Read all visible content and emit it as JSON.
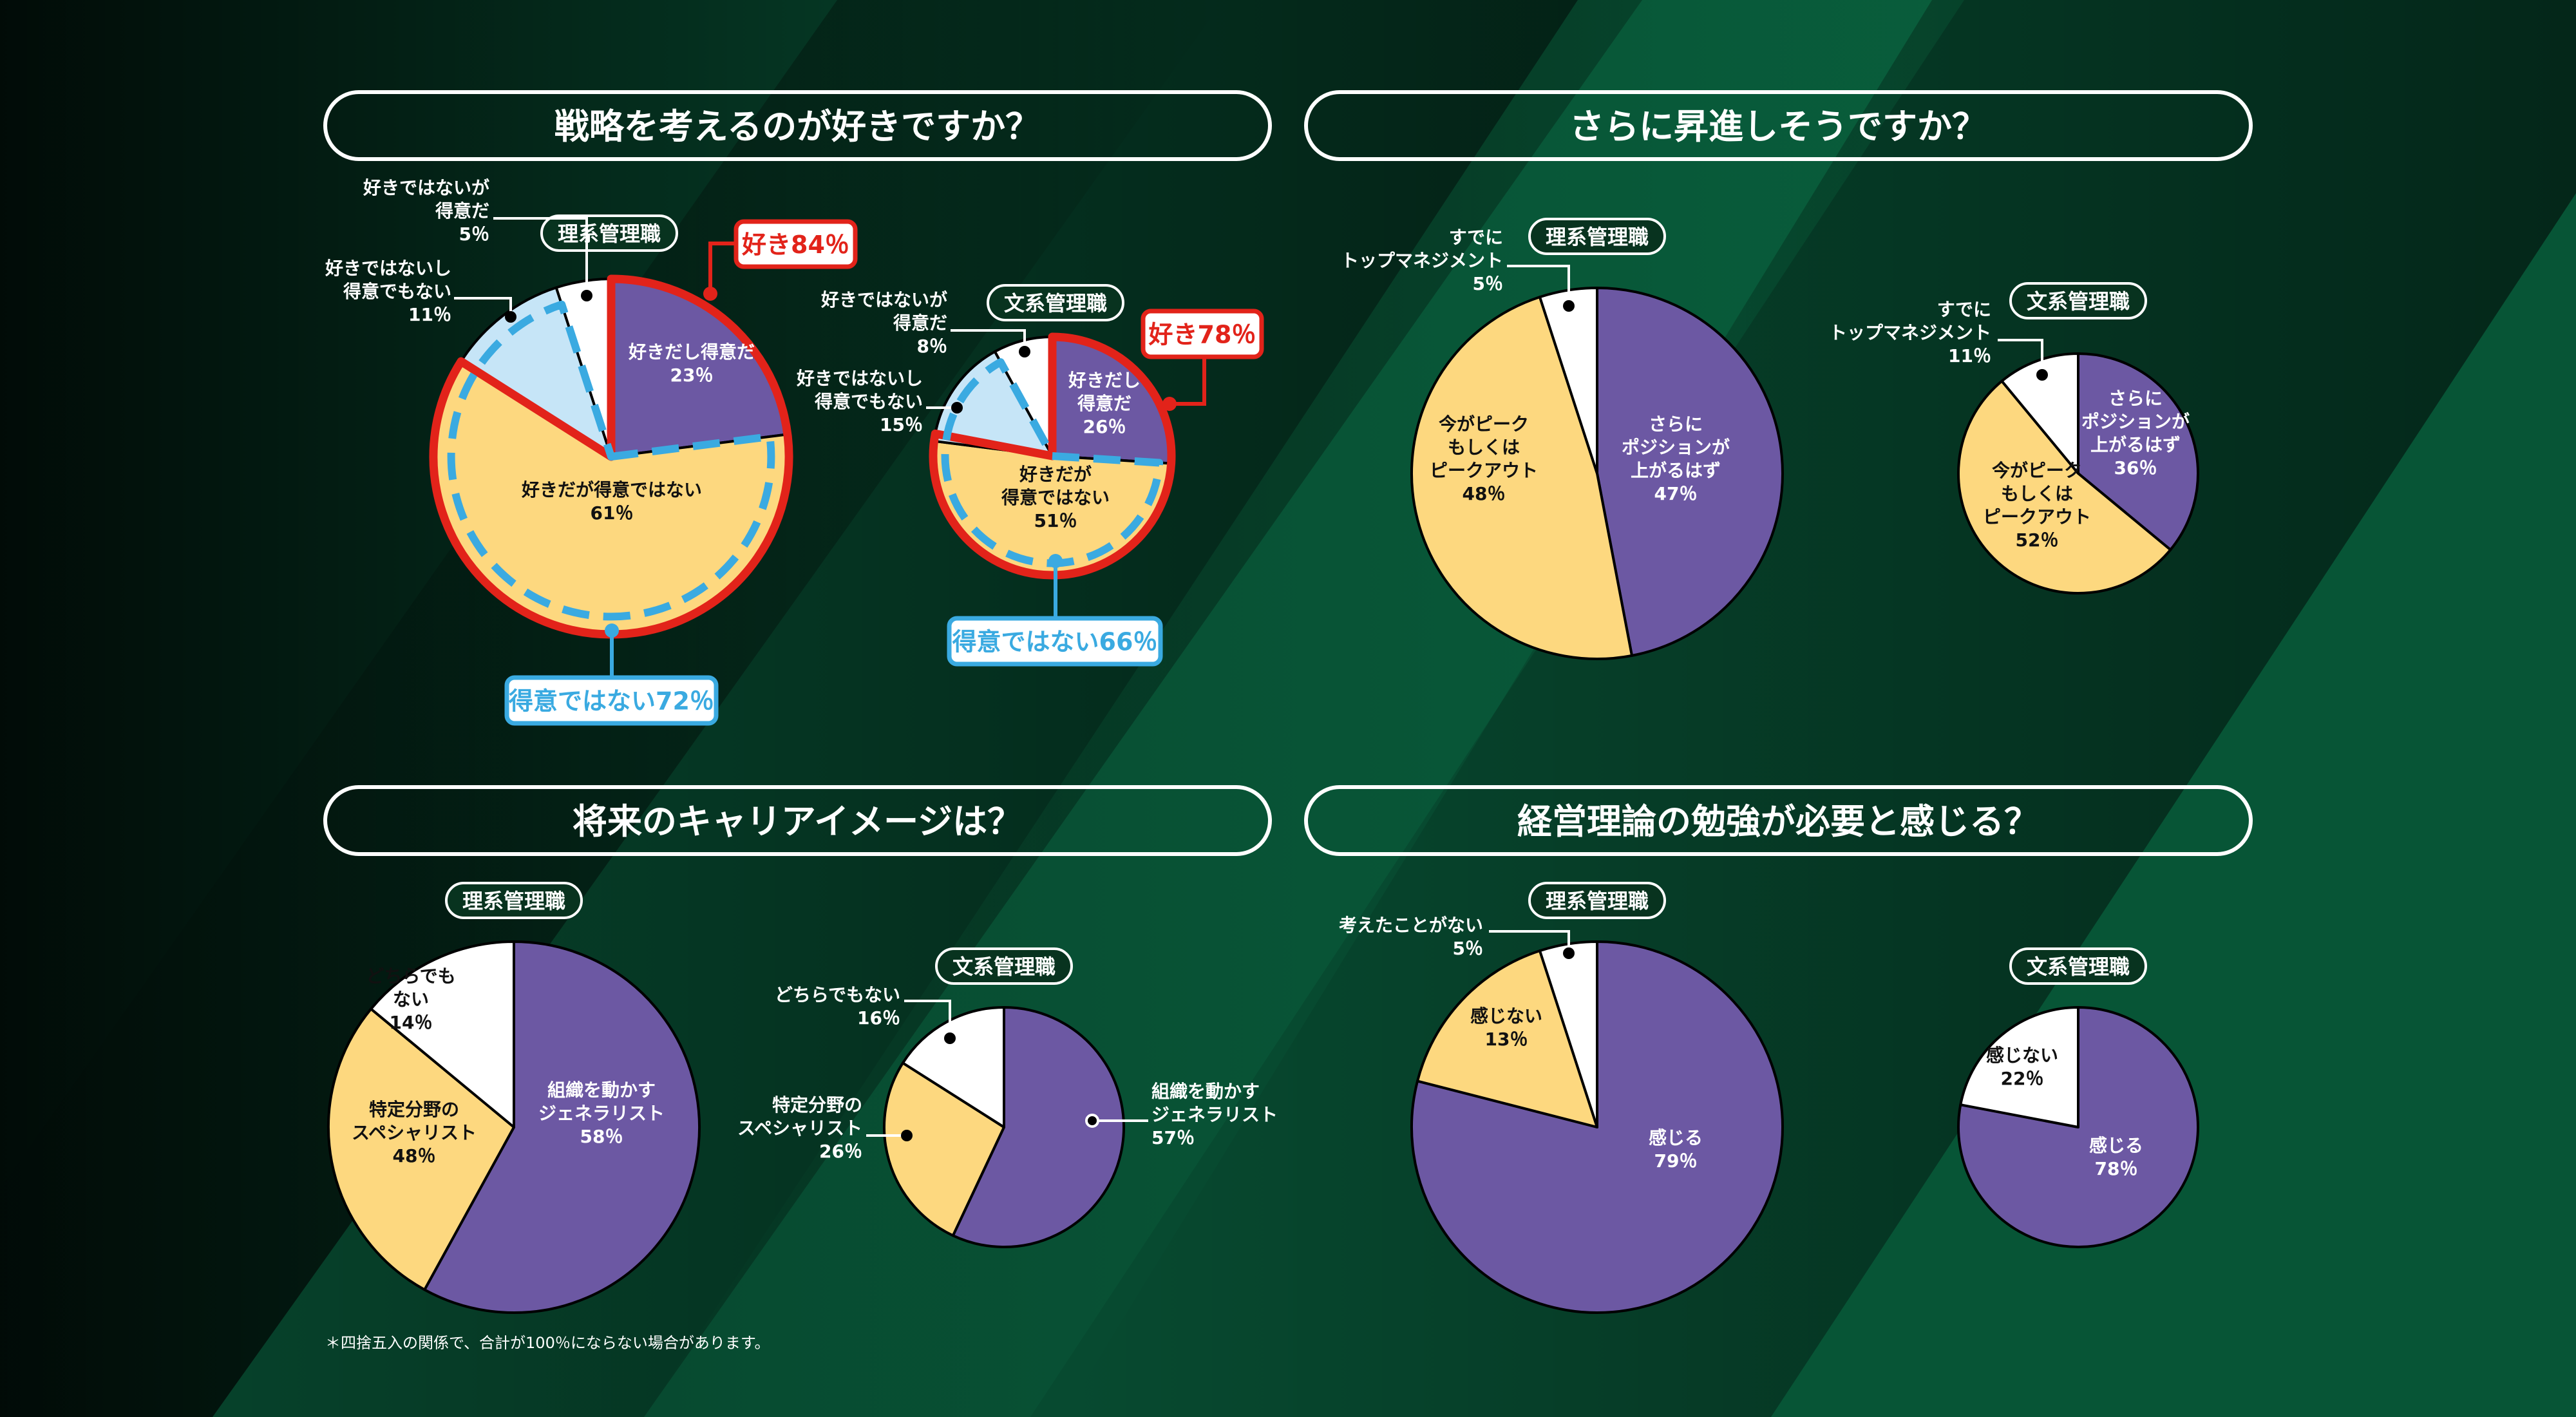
{
  "panels": [
    {
      "title": "戦略を考えるのが好きですか？"
    },
    {
      "title": "さらに昇進しそうですか？"
    },
    {
      "title": "将来のキャリアイメージは？"
    },
    {
      "title": "経営理論の勉強が必要と感じる？"
    }
  ],
  "footnote": "＊四捨五入の関係で、合計が100％にならない場合があります。",
  "colors": {
    "purple": "#6c58a3",
    "yellow": "#fdd87f",
    "lightblue": "#c6e5f7",
    "white": "#ffffff",
    "red": "#e2231a",
    "blue": "#3aaae1"
  },
  "chart_data": [
    {
      "type": "pie",
      "panel": 0,
      "group": "理系管理職",
      "slices": [
        {
          "label": [
            "好きだし得意だ"
          ],
          "value": 23,
          "value_text": "23％",
          "color": "#6c58a3"
        },
        {
          "label": [
            "好きだが得意ではない"
          ],
          "value": 61,
          "value_text": "61％",
          "color": "#fdd87f"
        },
        {
          "label": [
            "好きではないし",
            "得意でもない"
          ],
          "value": 11,
          "value_text": "11％",
          "color": "#c6e5f7"
        },
        {
          "label": [
            "好きではないが",
            "得意だ"
          ],
          "value": 5,
          "value_text": "5％",
          "color": "#ffffff"
        }
      ],
      "callouts": [
        {
          "text": "好き84％",
          "color": "#e2231a",
          "from": 0,
          "to": 84,
          "style": "solid"
        },
        {
          "text": "得意ではない72％",
          "color": "#3aaae1",
          "from": 23,
          "to": 95,
          "style": "dashed"
        }
      ]
    },
    {
      "type": "pie",
      "panel": 0,
      "group": "文系管理職",
      "slices": [
        {
          "label": [
            "好きだし",
            "得意だ"
          ],
          "value": 26,
          "value_text": "26％",
          "color": "#6c58a3"
        },
        {
          "label": [
            "好きだが",
            "得意ではない"
          ],
          "value": 51,
          "value_text": "51％",
          "color": "#fdd87f"
        },
        {
          "label": [
            "好きではないし",
            "得意でもない"
          ],
          "value": 15,
          "value_text": "15％",
          "color": "#c6e5f7"
        },
        {
          "label": [
            "好きではないが",
            "得意だ"
          ],
          "value": 8,
          "value_text": "8％",
          "color": "#ffffff"
        }
      ],
      "callouts": [
        {
          "text": "好き78％",
          "color": "#e2231a",
          "from": 0,
          "to": 78,
          "style": "solid"
        },
        {
          "text": "得意ではない66％",
          "color": "#3aaae1",
          "from": 26,
          "to": 92,
          "style": "dashed"
        }
      ]
    },
    {
      "type": "pie",
      "panel": 1,
      "group": "理系管理職",
      "slices": [
        {
          "label": [
            "さらに",
            "ポジションが",
            "上がるはず"
          ],
          "value": 47,
          "value_text": "47％",
          "color": "#6c58a3"
        },
        {
          "label": [
            "今がピーク",
            "もしくは",
            "ピークアウト"
          ],
          "value": 48,
          "value_text": "48％",
          "color": "#fdd87f"
        },
        {
          "label": [
            "すでに",
            "トップマネジメント"
          ],
          "value": 5,
          "value_text": "5％",
          "color": "#ffffff"
        }
      ]
    },
    {
      "type": "pie",
      "panel": 1,
      "group": "文系管理職",
      "slices": [
        {
          "label": [
            "さらに",
            "ポジションが",
            "上がるはず"
          ],
          "value": 36,
          "value_text": "36％",
          "color": "#6c58a3"
        },
        {
          "label": [
            "今がピーク",
            "もしくは",
            "ピークアウト"
          ],
          "value": 52,
          "value_text": "52％",
          "color": "#fdd87f"
        },
        {
          "label": [
            "すでに",
            "トップマネジメント"
          ],
          "value": 11,
          "value_text": "11％",
          "color": "#ffffff"
        }
      ]
    },
    {
      "type": "pie",
      "panel": 2,
      "group": "理系管理職",
      "slices": [
        {
          "label": [
            "組織を動かす",
            "ジェネラリスト"
          ],
          "value": 58,
          "value_text": "58％",
          "color": "#6c58a3"
        },
        {
          "label": [
            "特定分野の",
            "スペシャリスト"
          ],
          "value": 48,
          "value_text": "48％",
          "color": "#fdd87f"
        },
        {
          "label": [
            "どちらでも",
            "ない"
          ],
          "value": 14,
          "value_text": "14％",
          "color": "#ffffff"
        }
      ]
    },
    {
      "type": "pie",
      "panel": 2,
      "group": "文系管理職",
      "slices": [
        {
          "label": [
            "組織を動かす",
            "ジェネラリスト"
          ],
          "value": 57,
          "value_text": "57％",
          "color": "#6c58a3"
        },
        {
          "label": [
            "特定分野の",
            "スペシャリスト"
          ],
          "value": 26,
          "value_text": "26％",
          "color": "#fdd87f"
        },
        {
          "label": [
            "どちらでもない"
          ],
          "value": 16,
          "value_text": "16％",
          "color": "#ffffff"
        }
      ]
    },
    {
      "type": "pie",
      "panel": 3,
      "group": "理系管理職",
      "slices": [
        {
          "label": [
            "感じる"
          ],
          "value": 79,
          "value_text": "79％",
          "color": "#6c58a3"
        },
        {
          "label": [
            "感じない"
          ],
          "value": 13,
          "value_text": "13％",
          "color": "#fdd87f"
        },
        {
          "label": [
            "考えたことがない"
          ],
          "value": 5,
          "value_text": "5％",
          "color": "#ffffff"
        }
      ]
    },
    {
      "type": "pie",
      "panel": 3,
      "group": "文系管理職",
      "slices": [
        {
          "label": [
            "感じる"
          ],
          "value": 78,
          "value_text": "78％",
          "color": "#6c58a3"
        },
        {
          "label": [
            "感じない"
          ],
          "value": 22,
          "value_text": "22％",
          "color": "#ffffff"
        }
      ]
    }
  ]
}
